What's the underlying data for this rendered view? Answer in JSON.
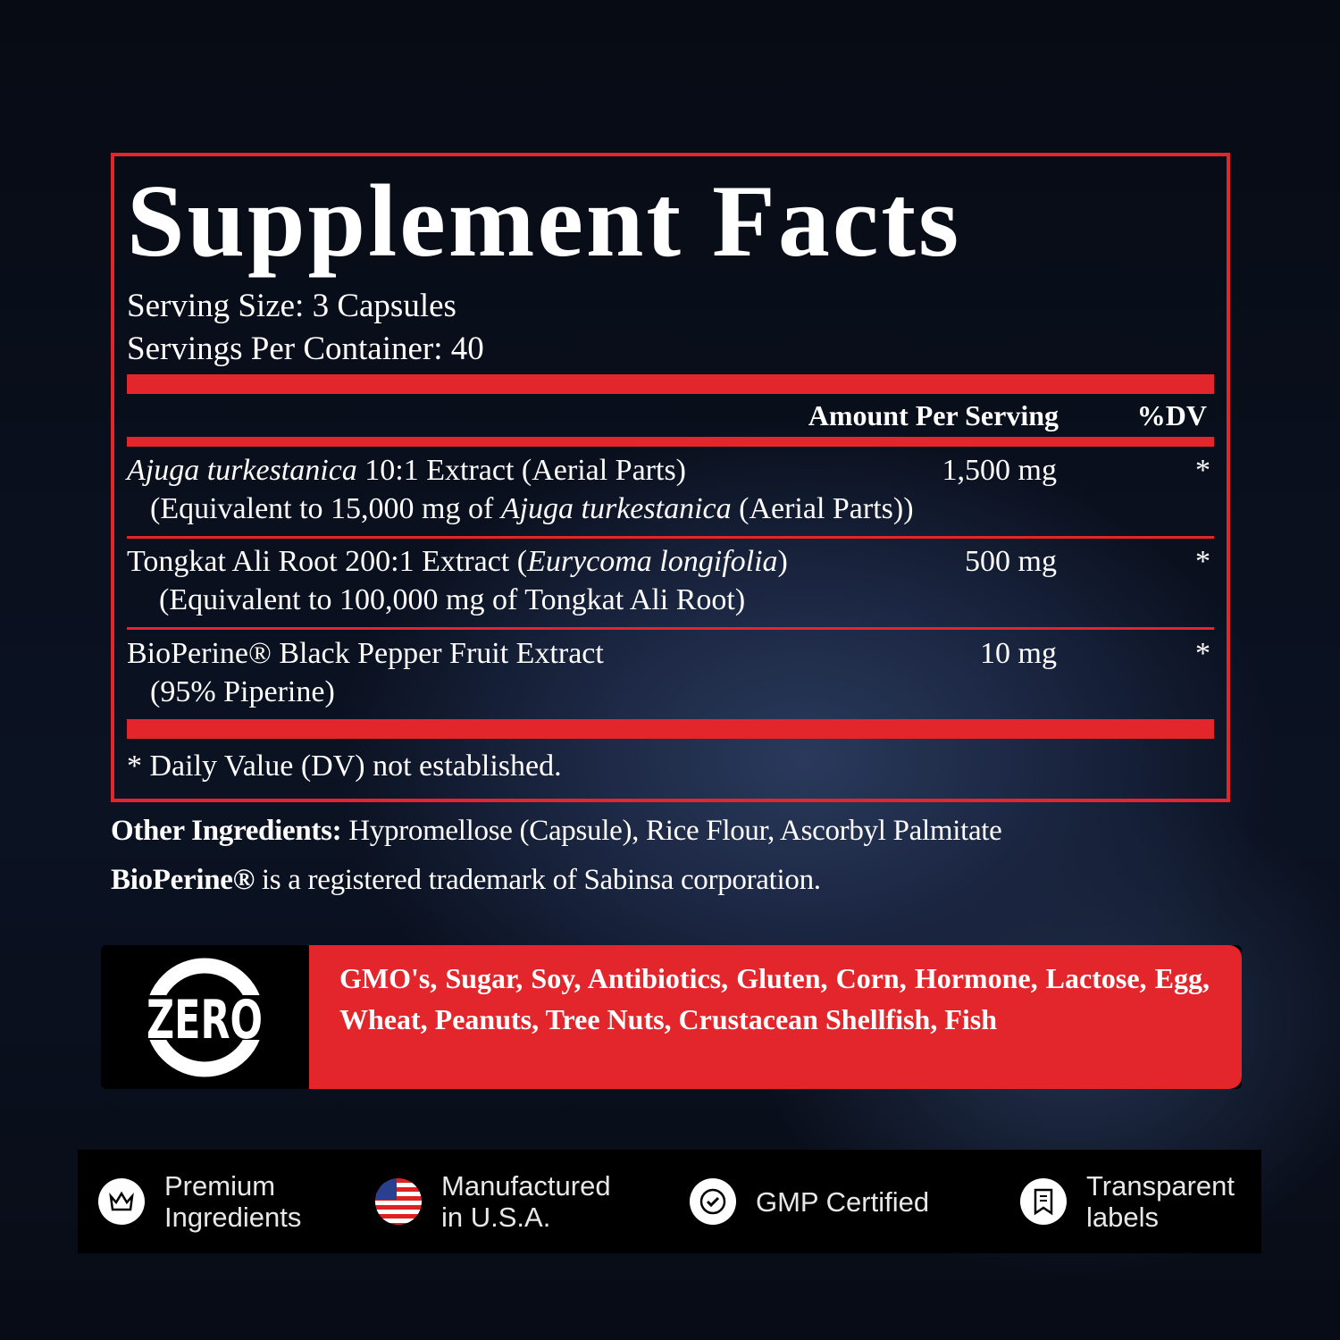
{
  "title": "Supplement Facts",
  "serving_size": "Serving Size: 3 Capsules",
  "servings_per_container": "Servings Per Container: 40",
  "header": {
    "amount": "Amount Per Serving",
    "dv": "%DV"
  },
  "ingredients": [
    {
      "name_italic": "Ajuga turkestanica",
      "name_rest": " 10:1 Extract (Aerial Parts)",
      "sub_pre": "(Equivalent to 15,000 mg of ",
      "sub_italic": "Ajuga turkestanica",
      "sub_post": " (Aerial Parts))",
      "amount": "1,500 mg",
      "dv": "*"
    },
    {
      "name_pre": "Tongkat Ali Root 200:1 Extract (",
      "name_italic": "Eurycoma longifolia",
      "name_post": ")",
      "sub": "(Equivalent to 100,000 mg of Tongkat Ali Root)",
      "amount": "500 mg",
      "dv": "*"
    },
    {
      "name": "BioPerine® Black Pepper Fruit Extract",
      "sub": "(95% Piperine)",
      "amount": "10 mg",
      "dv": "*"
    }
  ],
  "footnote": "* Daily Value (DV) not established.",
  "other_ingredients": {
    "label": "Other Ingredients:",
    "value": " Hypromellose (Capsule), Rice Flour, Ascorbyl Palmitate"
  },
  "trademark": {
    "label": "BioPerine®",
    "value": " is a registered trademark of Sabinsa corporation."
  },
  "zero": {
    "logo": "ZERO",
    "list": "GMO's, Sugar, Soy, Antibiotics, Gluten, Corn, Hormone, Lactose, Egg, Wheat, Peanuts, Tree Nuts, Crustacean Shellfish, Fish"
  },
  "badges": [
    {
      "icon": "crown-icon",
      "line1": "Premium",
      "line2": "Ingredients"
    },
    {
      "icon": "us-flag-icon",
      "line1": "Manufactured",
      "line2": "in U.S.A."
    },
    {
      "icon": "certified-seal-icon",
      "line1": "GMP Certified",
      "line2": ""
    },
    {
      "icon": "label-icon",
      "line1": "Transparent",
      "line2": "labels"
    }
  ],
  "colors": {
    "accent": "#e3262b",
    "background": "#080d18"
  }
}
